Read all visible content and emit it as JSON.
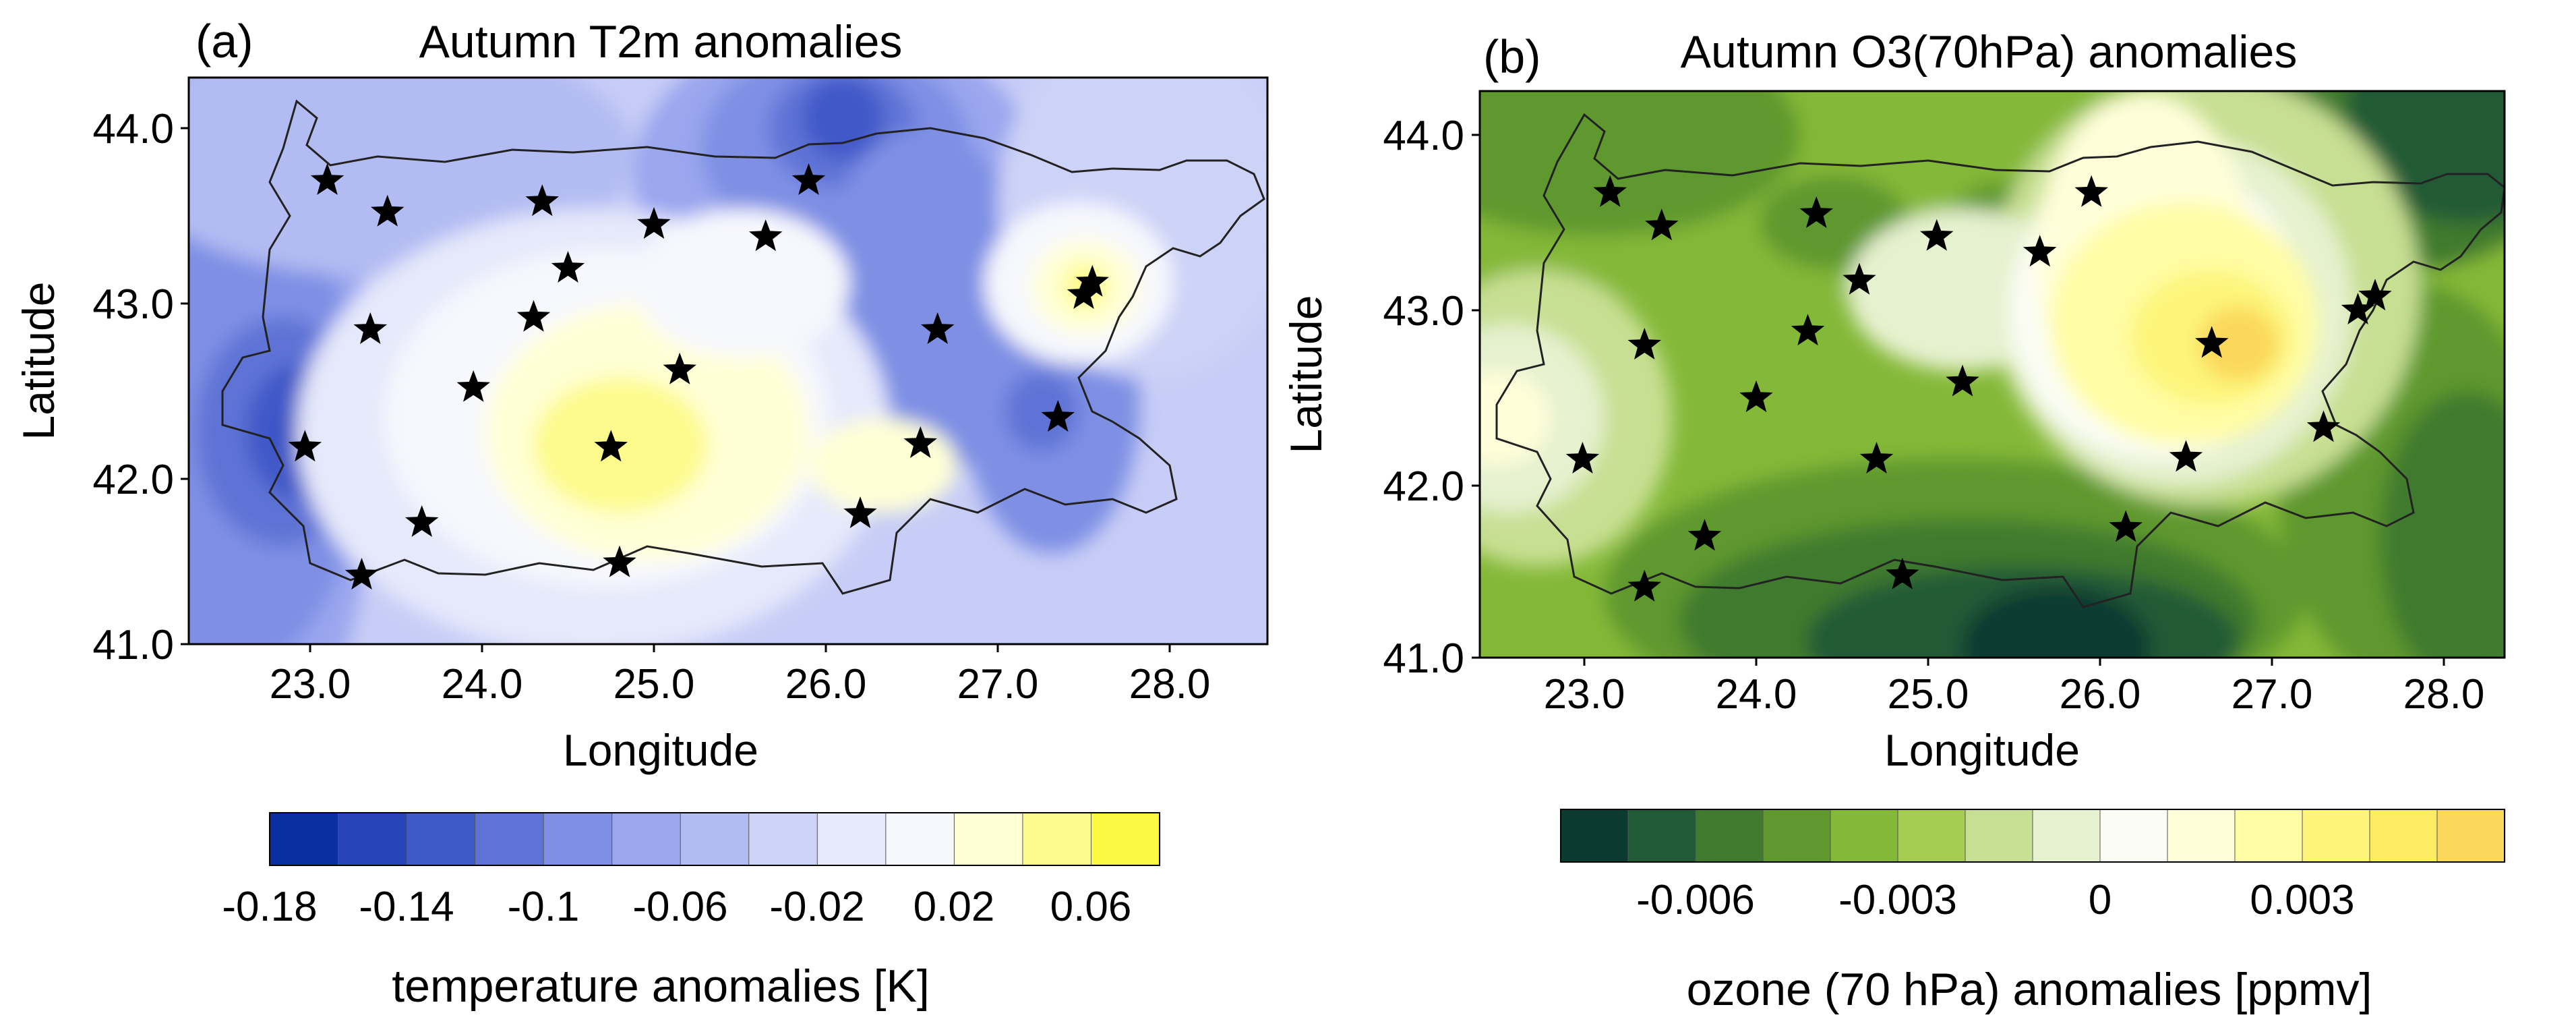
{
  "panel_a": {
    "letter": "(a)",
    "title": "Autumn T2m anomalies",
    "xlabel": "Longitude",
    "ylabel": "Latitude",
    "x_ticks": [
      "23.0",
      "24.0",
      "25.0",
      "26.0",
      "27.0",
      "28.0"
    ],
    "y_ticks": [
      "44.0",
      "43.0",
      "42.0",
      "41.0"
    ],
    "colorbar_ticks": [
      "-0.18",
      "-0.14",
      "-0.1",
      "-0.06",
      "-0.02",
      "0.02",
      "0.06"
    ],
    "colorbar_title": "temperature anomalies [K]",
    "colorbar_colors": [
      "#0b2ea0",
      "#2744b8",
      "#3f59c8",
      "#5f73d6",
      "#7e8fe4",
      "#9aa6ee",
      "#b2bcf2",
      "#cdd3f7",
      "#e6e9fb",
      "#f7f8fd",
      "#ffffd6",
      "#fdfb8c",
      "#fbf844"
    ]
  },
  "panel_b": {
    "letter": "(b)",
    "title": "Autumn O3(70hPa) anomalies",
    "xlabel": "Longitude",
    "ylabel": "Latitude",
    "x_ticks": [
      "23.0",
      "24.0",
      "25.0",
      "26.0",
      "27.0",
      "28.0"
    ],
    "y_ticks": [
      "44.0",
      "43.0",
      "42.0",
      "41.0"
    ],
    "colorbar_ticks": [
      "-0.006",
      "-0.003",
      "0",
      "0.003"
    ],
    "colorbar_title": "ozone (70 hPa) anomalies [ppmv]",
    "colorbar_colors": [
      "#0a3a30",
      "#205a36",
      "#3f7a2e",
      "#5e982e",
      "#84b838",
      "#a6cc52",
      "#c7df93",
      "#e6f1cf",
      "#fbfdf5",
      "#fffed9",
      "#fffda5",
      "#fdf57a",
      "#fbec62",
      "#fbd85a"
    ]
  },
  "stations": {
    "panel_a": [
      [
        23.1,
        43.7
      ],
      [
        23.45,
        43.52
      ],
      [
        24.35,
        43.58
      ],
      [
        25.0,
        43.45
      ],
      [
        25.9,
        43.7
      ],
      [
        23.35,
        42.85
      ],
      [
        24.5,
        43.2
      ],
      [
        25.65,
        43.38
      ],
      [
        24.3,
        42.92
      ],
      [
        23.95,
        42.52
      ],
      [
        25.15,
        42.62
      ],
      [
        24.75,
        42.18
      ],
      [
        22.97,
        42.18
      ],
      [
        23.65,
        41.75
      ],
      [
        23.3,
        41.45
      ],
      [
        24.8,
        41.52
      ],
      [
        26.2,
        41.8
      ],
      [
        26.55,
        42.2
      ],
      [
        26.65,
        42.85
      ],
      [
        27.35,
        42.35
      ],
      [
        27.5,
        43.05
      ],
      [
        27.55,
        43.12
      ]
    ],
    "panel_b": [
      [
        23.15,
        43.67
      ],
      [
        23.45,
        43.48
      ],
      [
        24.35,
        43.55
      ],
      [
        25.05,
        43.42
      ],
      [
        25.95,
        43.67
      ],
      [
        25.65,
        43.33
      ],
      [
        24.6,
        43.17
      ],
      [
        23.35,
        42.8
      ],
      [
        24.3,
        42.88
      ],
      [
        25.2,
        42.59
      ],
      [
        24.0,
        42.5
      ],
      [
        24.7,
        42.15
      ],
      [
        22.99,
        42.15
      ],
      [
        23.7,
        41.71
      ],
      [
        23.35,
        41.42
      ],
      [
        24.85,
        41.49
      ],
      [
        26.15,
        41.76
      ],
      [
        26.5,
        42.16
      ],
      [
        26.65,
        42.81
      ],
      [
        27.3,
        42.33
      ],
      [
        27.5,
        43.0
      ],
      [
        27.6,
        43.08
      ]
    ]
  }
}
